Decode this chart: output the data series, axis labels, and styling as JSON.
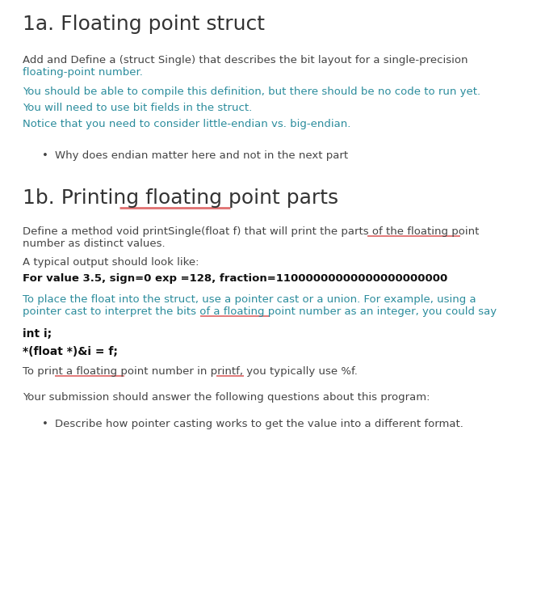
{
  "bg_color": "#ffffff",
  "heading_color": "#333333",
  "body_color": "#444444",
  "cyan_color": "#2b8c9c",
  "bold_color": "#111111",
  "underline_color": "#e07070",
  "title1": "1a. Floating point struct",
  "title2": "1b. Printing floating point parts",
  "para1a_1_line1": "Add and Define a (struct Single) that describes the bit layout for a single-precision",
  "para1a_1_line2": "floating-point number.",
  "para1a_2": "You should be able to compile this definition, but there should be no code to run yet.",
  "para1a_3": "You will need to use bit fields in the struct.",
  "para1a_4": "Notice that you need to consider little-endian vs. big-endian.",
  "bullet_1a": "Why does endian matter here and not in the next part",
  "para1b_1_line1": "Define a method void printSingle(float f) that will print the parts of the floating point",
  "para1b_1_line2": "number as distinct values.",
  "para1b_2": "A typical output should look like:",
  "bold_line": "For value 3.5, sign=0 exp =128, fraction=11000000000000000000000",
  "para1b_3_line1": "To place the float into the struct, use a pointer cast or a union. For example, using a",
  "para1b_3_line2": "pointer cast to interpret the bits of a floating point number as an integer, you could say",
  "code1": "int i;",
  "code2": "*(float *)&i = f;",
  "para1b_4": "To print a floating point number in printf, you typically use %f.",
  "para1b_5": "Your submission should answer the following questions about this program:",
  "bullet_1b": "Describe how pointer casting works to get the value into a different format."
}
